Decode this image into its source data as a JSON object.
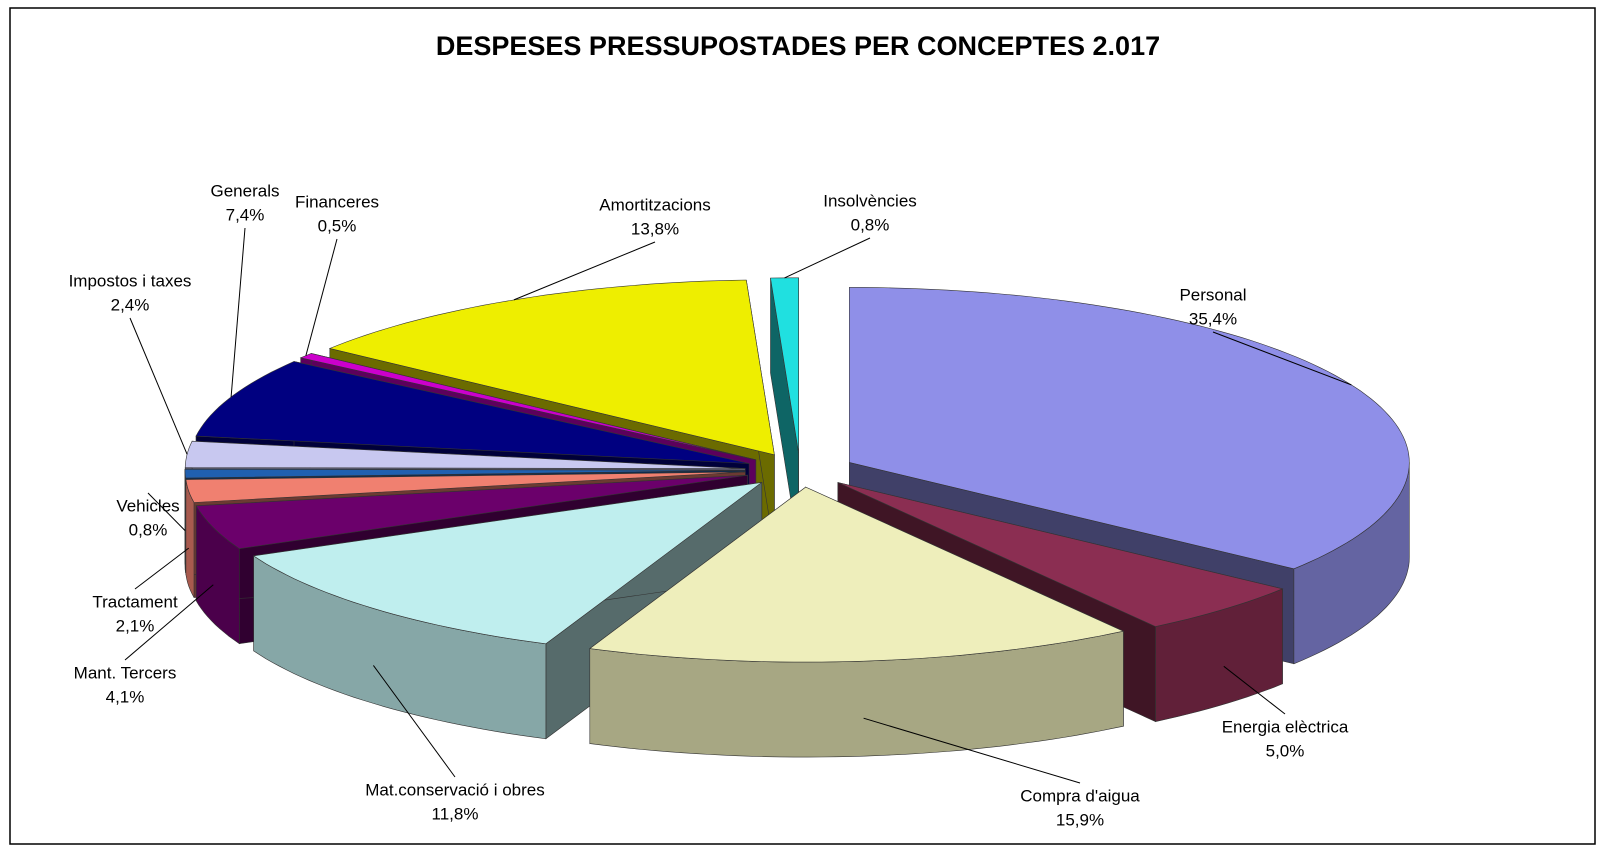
{
  "chart_data": {
    "type": "pie3d",
    "title": "DESPESES PRESSUPOSTADES  PER CONCEPTES 2.017",
    "categories": [
      "Personal",
      "Energia elèctrica",
      "Compra d'aigua",
      "Mat.conservació i obres",
      "Mant. Tercers",
      "Tractament",
      "Vehicles",
      "Impostos i taxes",
      "Generals",
      "Financeres",
      "Amortitzacions",
      "Insolvències"
    ],
    "values": [
      35.4,
      5.0,
      15.9,
      11.8,
      4.1,
      2.1,
      0.8,
      2.4,
      7.4,
      0.5,
      13.8,
      0.8
    ],
    "value_labels": [
      "35,4%",
      "5,0%",
      "15,9%",
      "11,8%",
      "4,1%",
      "2,1%",
      "0,8%",
      "2,4%",
      "7,4%",
      "0,5%",
      "13,8%",
      "0,8%"
    ],
    "colors": [
      "#8f8fe8",
      "#8b2e52",
      "#eeeebb",
      "#bfeeee",
      "#6b006b",
      "#f08070",
      "#2060b0",
      "#c8c8f0",
      "#000080",
      "#cc00cc",
      "#eeee00",
      "#20e0e0"
    ]
  }
}
